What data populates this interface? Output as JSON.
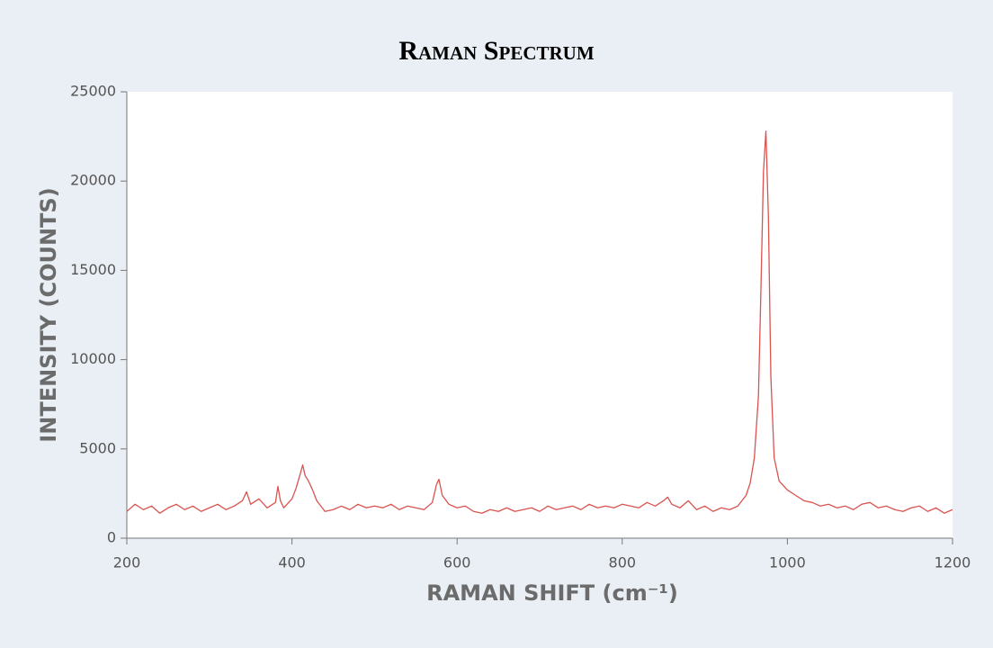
{
  "chart_data": {
    "type": "line",
    "title": "Raman Spectrum",
    "x_label": "RAMAN SHIFT (cm⁻¹)",
    "y_label": "INTENSITY (COUNTS)",
    "xlim": [
      200,
      1200
    ],
    "xticks": [
      200,
      400,
      600,
      800,
      1000,
      1200
    ],
    "ylim": [
      0,
      25000
    ],
    "yticks": [
      0,
      5000,
      10000,
      15000,
      20000,
      25000
    ],
    "x": [
      200,
      210,
      220,
      230,
      240,
      250,
      260,
      270,
      280,
      290,
      300,
      310,
      320,
      330,
      340,
      345,
      350,
      360,
      370,
      380,
      383,
      386,
      390,
      400,
      405,
      410,
      413,
      416,
      420,
      425,
      430,
      440,
      450,
      460,
      470,
      480,
      490,
      500,
      510,
      520,
      530,
      540,
      550,
      560,
      570,
      575,
      578,
      582,
      590,
      600,
      610,
      620,
      630,
      640,
      650,
      660,
      670,
      680,
      690,
      700,
      710,
      720,
      730,
      740,
      750,
      760,
      770,
      780,
      790,
      800,
      810,
      820,
      830,
      840,
      850,
      855,
      860,
      870,
      880,
      890,
      900,
      910,
      920,
      930,
      940,
      950,
      955,
      960,
      965,
      968,
      971,
      974,
      977,
      980,
      984,
      990,
      1000,
      1010,
      1020,
      1030,
      1040,
      1050,
      1060,
      1070,
      1080,
      1090,
      1100,
      1110,
      1120,
      1130,
      1140,
      1150,
      1160,
      1170,
      1180,
      1190,
      1200
    ],
    "series": [
      {
        "color": "#d9534f",
        "values": [
          1500,
          1900,
          1600,
          1800,
          1400,
          1700,
          1900,
          1600,
          1800,
          1500,
          1700,
          1900,
          1600,
          1800,
          2100,
          2600,
          1900,
          2200,
          1700,
          2000,
          2900,
          2100,
          1700,
          2200,
          2800,
          3600,
          4100,
          3500,
          3200,
          2700,
          2100,
          1500,
          1600,
          1800,
          1600,
          1900,
          1700,
          1800,
          1700,
          1900,
          1600,
          1800,
          1700,
          1600,
          2000,
          3000,
          3300,
          2400,
          1900,
          1700,
          1800,
          1500,
          1400,
          1600,
          1500,
          1700,
          1500,
          1600,
          1700,
          1500,
          1800,
          1600,
          1700,
          1800,
          1600,
          1900,
          1700,
          1800,
          1700,
          1900,
          1800,
          1700,
          2000,
          1800,
          2100,
          2300,
          1900,
          1700,
          2100,
          1600,
          1800,
          1500,
          1700,
          1600,
          1800,
          2400,
          3100,
          4500,
          8000,
          14000,
          20500,
          22800,
          18000,
          9000,
          4500,
          3200,
          2700,
          2400,
          2100,
          2000,
          1800,
          1900,
          1700,
          1800,
          1600,
          1900,
          2000,
          1700,
          1800,
          1600,
          1500,
          1700,
          1800,
          1500,
          1700,
          1400,
          1600
        ]
      }
    ]
  }
}
